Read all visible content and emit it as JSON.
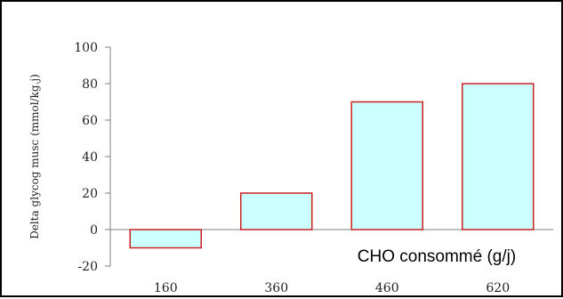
{
  "chart_data": {
    "type": "bar",
    "categories": [
      "160",
      "360",
      "460",
      "620"
    ],
    "values": [
      -10,
      20,
      70,
      80
    ],
    "title": "",
    "xlabel": "CHO consommé (g/j)",
    "ylabel": "Delta glycog musc (mmol/kg.j)",
    "ylim": [
      -20,
      100
    ],
    "yticks": [
      "100",
      "80",
      "60",
      "40",
      "20",
      "0",
      "-20"
    ],
    "grid": false,
    "bar_fill": "#ccffff",
    "bar_stroke": "#cc2222",
    "axis_color": "#808080"
  }
}
